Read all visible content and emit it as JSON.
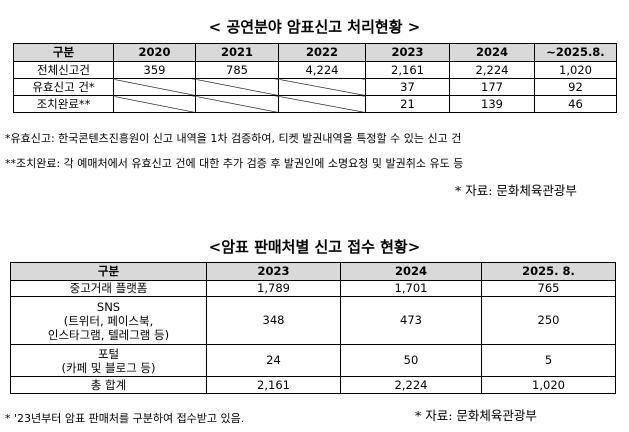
{
  "table1": {
    "title": "< 공연분야 암표신고 처리현황 >",
    "headers": [
      "구분",
      "2020",
      "2021",
      "2022",
      "2023",
      "2024",
      "~2025.8."
    ],
    "rows": [
      {
        "label": "전체신고건",
        "cells": [
          "359",
          "785",
          "4,224",
          "2,161",
          "2,224",
          "1,020"
        ]
      },
      {
        "label": "유효신고 건*",
        "cells": [
          "",
          "",
          "",
          "37",
          "177",
          "92"
        ]
      },
      {
        "label": "조치완료**",
        "cells": [
          "",
          "",
          "",
          "21",
          "139",
          "46"
        ]
      }
    ],
    "note1": "*유효신고: 한국콘텐츠진흥원이 신고 내역을 1차 검증하여, 티켓 발권내역을 특정할 수 있는 신고 건",
    "note2": "**조치완료: 각 예매처에서 유효신고 건에 대한 추가 검증 후 발권인에 소명요청 및 발권취소 유도 등",
    "source": "* 자료: 문화체육관광부"
  },
  "table2": {
    "title": "<암표 판매처별 신고 접수 현황>",
    "headers": [
      "구분",
      "2023",
      "2024",
      "2025. 8."
    ],
    "rows": [
      {
        "label": "중고거래 플랫폼",
        "cells": [
          "1,789",
          "1,701",
          "765"
        ]
      },
      {
        "label": "SNS\n(트위터, 페이스북,\n인스타그램, 텔레그램 등)",
        "cells": [
          "348",
          "473",
          "250"
        ]
      },
      {
        "label": "포털\n(카페 및 블로그 등)",
        "cells": [
          "24",
          "50",
          "5"
        ]
      },
      {
        "label": "총 합계",
        "cells": [
          "2,161",
          "2,224",
          "1,020"
        ]
      }
    ],
    "footnote": "*  '23년부터 암표 판매처를 구분하여 접수받고 있음.",
    "source": "* 자료: 문화체육관광부"
  }
}
